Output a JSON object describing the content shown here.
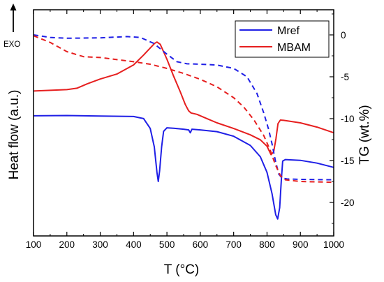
{
  "chart_data": {
    "type": "line",
    "xlabel": "T (°C)",
    "ylabel_left": "Heat flow (a.u.)",
    "ylabel_right": "TG (wt.%)",
    "exo_label": "EXO",
    "xlim": [
      100,
      1000
    ],
    "x_ticks": [
      100,
      200,
      300,
      400,
      500,
      600,
      700,
      800,
      900,
      1000
    ],
    "ylim_right": [
      -24,
      3
    ],
    "right_ticks": [
      0,
      -5,
      -10,
      -15,
      -20
    ],
    "left_axis_tick_labels": false,
    "legend": {
      "position": "top-right",
      "entries": [
        "Mref",
        "MBAM"
      ]
    },
    "colors": {
      "Mref": "#1f1fe6",
      "MBAM": "#e61f1f",
      "axis": "#000000"
    },
    "series": [
      {
        "name": "Mref",
        "quantity": "heat flow (a.u.)",
        "style": "solid",
        "color": "#1f1fe6",
        "points": [
          [
            100,
            8.5
          ],
          [
            200,
            8.52
          ],
          [
            300,
            8.48
          ],
          [
            400,
            8.45
          ],
          [
            430,
            8.3
          ],
          [
            450,
            7.6
          ],
          [
            462,
            6.3
          ],
          [
            470,
            4.5
          ],
          [
            474,
            3.85
          ],
          [
            478,
            4.6
          ],
          [
            484,
            6.3
          ],
          [
            490,
            7.4
          ],
          [
            500,
            7.65
          ],
          [
            520,
            7.62
          ],
          [
            550,
            7.55
          ],
          [
            565,
            7.5
          ],
          [
            570,
            7.3
          ],
          [
            575,
            7.55
          ],
          [
            600,
            7.5
          ],
          [
            650,
            7.38
          ],
          [
            700,
            7.05
          ],
          [
            750,
            6.4
          ],
          [
            780,
            5.6
          ],
          [
            800,
            4.5
          ],
          [
            815,
            3.0
          ],
          [
            826,
            1.5
          ],
          [
            832,
            1.2
          ],
          [
            838,
            2.0
          ],
          [
            843,
            4.0
          ],
          [
            847,
            5.3
          ],
          [
            855,
            5.4
          ],
          [
            900,
            5.35
          ],
          [
            950,
            5.15
          ],
          [
            1000,
            4.85
          ]
        ]
      },
      {
        "name": "MBAM",
        "quantity": "heat flow (a.u.)",
        "style": "solid",
        "color": "#e61f1f",
        "points": [
          [
            100,
            10.25
          ],
          [
            150,
            10.3
          ],
          [
            200,
            10.35
          ],
          [
            230,
            10.45
          ],
          [
            260,
            10.75
          ],
          [
            300,
            11.1
          ],
          [
            350,
            11.45
          ],
          [
            400,
            12.1
          ],
          [
            430,
            12.8
          ],
          [
            450,
            13.3
          ],
          [
            463,
            13.62
          ],
          [
            470,
            13.72
          ],
          [
            480,
            13.55
          ],
          [
            500,
            12.5
          ],
          [
            520,
            11.3
          ],
          [
            540,
            10.2
          ],
          [
            555,
            9.3
          ],
          [
            565,
            8.85
          ],
          [
            572,
            8.7
          ],
          [
            590,
            8.6
          ],
          [
            620,
            8.3
          ],
          [
            650,
            8.0
          ],
          [
            700,
            7.6
          ],
          [
            750,
            7.15
          ],
          [
            780,
            6.8
          ],
          [
            800,
            6.35
          ],
          [
            812,
            5.75
          ],
          [
            820,
            5.95
          ],
          [
            827,
            6.9
          ],
          [
            833,
            7.95
          ],
          [
            840,
            8.2
          ],
          [
            850,
            8.18
          ],
          [
            900,
            8.0
          ],
          [
            950,
            7.7
          ],
          [
            1000,
            7.3
          ]
        ]
      },
      {
        "name": "Mref",
        "quantity": "TG (wt.%)",
        "style": "dashed",
        "color": "#1f1fe6",
        "points": [
          [
            100,
            0
          ],
          [
            150,
            -0.3
          ],
          [
            200,
            -0.4
          ],
          [
            300,
            -0.35
          ],
          [
            380,
            -0.2
          ],
          [
            420,
            -0.3
          ],
          [
            460,
            -1.0
          ],
          [
            500,
            -2.3
          ],
          [
            530,
            -3.2
          ],
          [
            560,
            -3.45
          ],
          [
            600,
            -3.5
          ],
          [
            650,
            -3.6
          ],
          [
            700,
            -4.0
          ],
          [
            740,
            -5.0
          ],
          [
            770,
            -7.0
          ],
          [
            790,
            -9.3
          ],
          [
            805,
            -11.3
          ],
          [
            815,
            -13.0
          ],
          [
            825,
            -15.0
          ],
          [
            835,
            -16.6
          ],
          [
            845,
            -17.1
          ],
          [
            860,
            -17.2
          ],
          [
            900,
            -17.25
          ],
          [
            1000,
            -17.3
          ]
        ]
      },
      {
        "name": "MBAM",
        "quantity": "TG (wt.%)",
        "style": "dashed",
        "color": "#e61f1f",
        "points": [
          [
            100,
            -0.1
          ],
          [
            150,
            -0.9
          ],
          [
            200,
            -2.0
          ],
          [
            250,
            -2.6
          ],
          [
            300,
            -2.7
          ],
          [
            400,
            -3.2
          ],
          [
            450,
            -3.5
          ],
          [
            500,
            -4.0
          ],
          [
            550,
            -4.6
          ],
          [
            600,
            -5.3
          ],
          [
            650,
            -6.2
          ],
          [
            700,
            -7.5
          ],
          [
            730,
            -8.6
          ],
          [
            760,
            -10.1
          ],
          [
            790,
            -12.0
          ],
          [
            810,
            -13.8
          ],
          [
            825,
            -15.5
          ],
          [
            840,
            -16.8
          ],
          [
            855,
            -17.3
          ],
          [
            900,
            -17.5
          ],
          [
            1000,
            -17.6
          ]
        ]
      }
    ]
  }
}
